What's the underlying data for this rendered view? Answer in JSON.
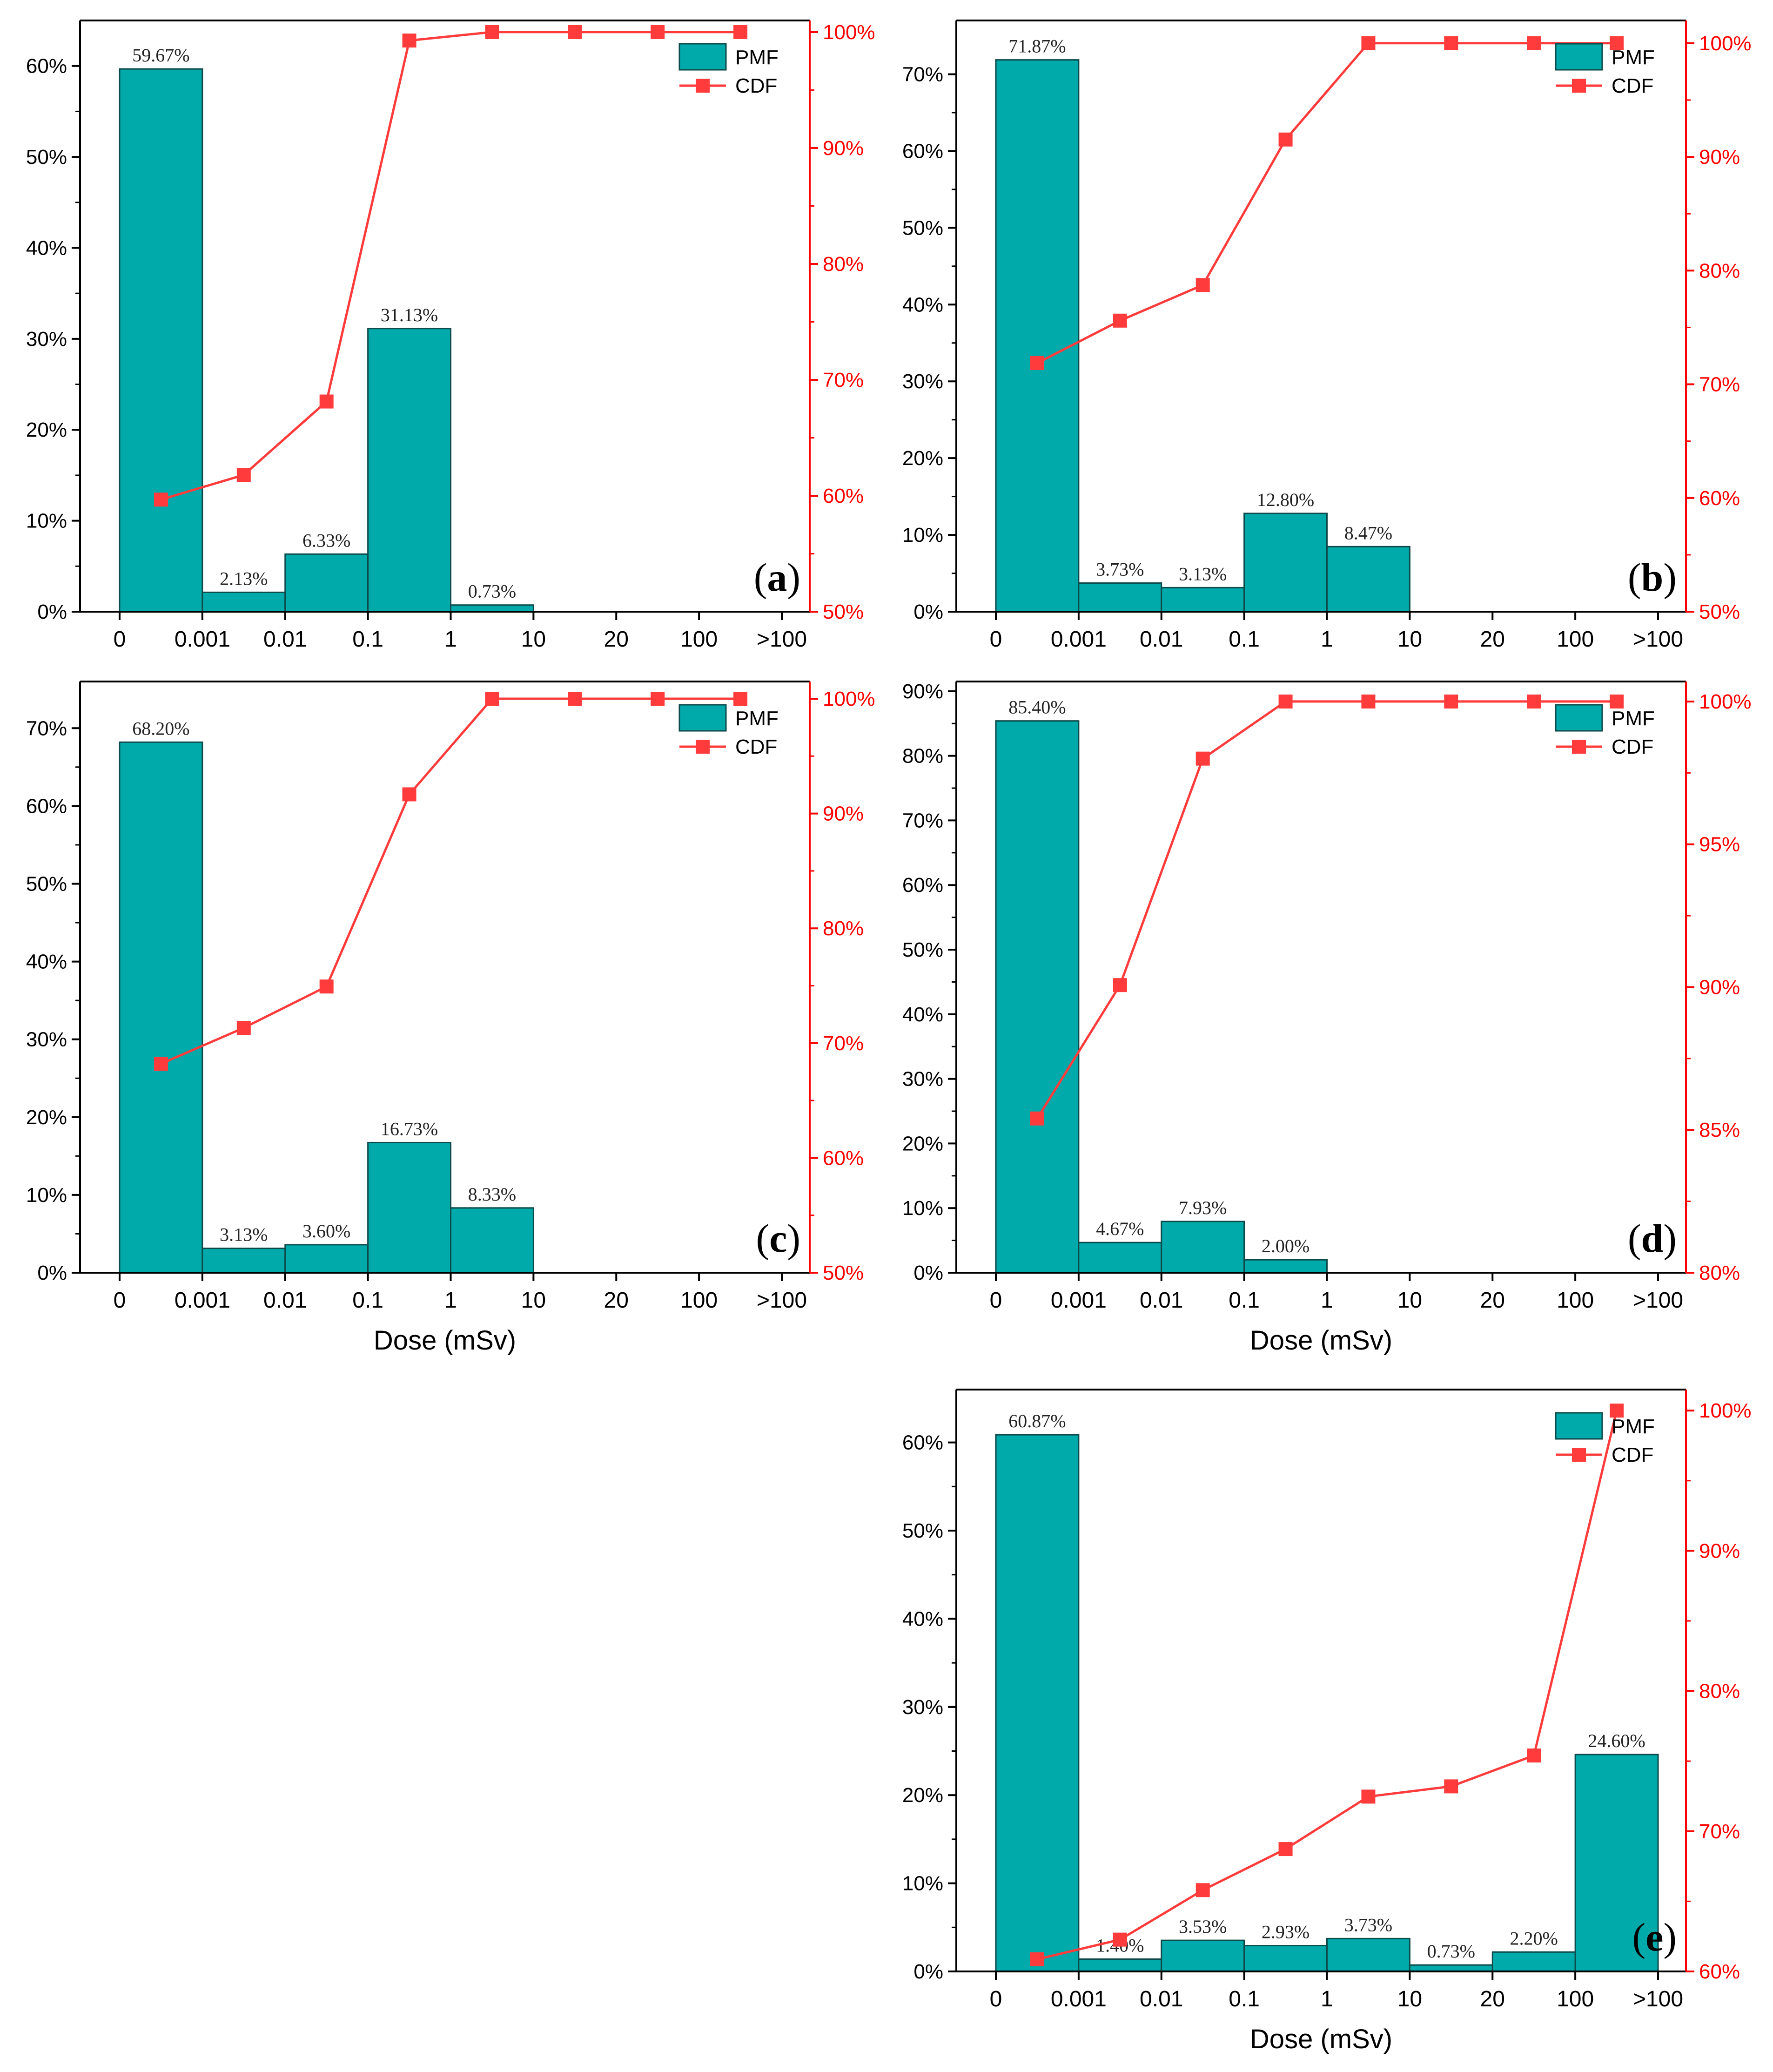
{
  "figure": {
    "x_tick_labels": [
      "0",
      "0.001",
      "0.01",
      "0.1",
      "1",
      "10",
      "20",
      "100",
      ">100"
    ],
    "xlabel": "Dose (mSv)",
    "legend": {
      "pmf": "PMF",
      "cdf": "CDF"
    },
    "colors": {
      "bar": "#00aaab",
      "bar_edge": "#0e4a4a",
      "cdf": "#ff3b3b",
      "cdf_axis": "#ff0000",
      "axis": "#000000"
    }
  },
  "chart_data": [
    {
      "type": "bar",
      "panel_label": "a",
      "categories": [
        "0–0.001",
        "0.001–0.01",
        "0.01–0.1",
        "0.1–1",
        "1–10",
        "10–20",
        "20–100",
        ">100"
      ],
      "series": [
        {
          "name": "PMF",
          "axis": "left",
          "unit": "%",
          "values": [
            59.67,
            2.13,
            6.33,
            31.13,
            0.73,
            0,
            0,
            0
          ],
          "value_labels": [
            "59.67%",
            "2.13%",
            "6.33%",
            "31.13%",
            "0.73%",
            "",
            "",
            ""
          ]
        },
        {
          "name": "CDF",
          "type": "line",
          "axis": "right",
          "unit": "%",
          "values": [
            59.67,
            61.8,
            68.13,
            99.27,
            100,
            100,
            100,
            100
          ]
        }
      ],
      "ylim": [
        0,
        65
      ],
      "yticks": [
        0,
        10,
        20,
        30,
        40,
        50,
        60
      ],
      "y_tick_labels": [
        "0%",
        "10%",
        "20%",
        "30%",
        "40%",
        "50%",
        "60%"
      ],
      "y2lim": [
        50,
        101
      ],
      "y2ticks": [
        50,
        60,
        70,
        80,
        90,
        100
      ],
      "y2_tick_labels": [
        "50%",
        "60%",
        "70%",
        "80%",
        "90%",
        "100%"
      ],
      "show_xlabel": false,
      "legend_position": "top-right"
    },
    {
      "type": "bar",
      "panel_label": "b",
      "categories": [
        "0–0.001",
        "0.001–0.01",
        "0.01–0.1",
        "0.1–1",
        "1–10",
        "10–20",
        "20–100",
        ">100"
      ],
      "series": [
        {
          "name": "PMF",
          "axis": "left",
          "unit": "%",
          "values": [
            71.87,
            3.73,
            3.13,
            12.8,
            8.47,
            0,
            0,
            0
          ],
          "value_labels": [
            "71.87%",
            "3.73%",
            "3.13%",
            "12.80%",
            "8.47%",
            "",
            "",
            ""
          ]
        },
        {
          "name": "CDF",
          "type": "line",
          "axis": "right",
          "unit": "%",
          "values": [
            71.87,
            75.6,
            78.73,
            91.53,
            100,
            100,
            100,
            100
          ]
        }
      ],
      "ylim": [
        0,
        77
      ],
      "yticks": [
        0,
        10,
        20,
        30,
        40,
        50,
        60,
        70
      ],
      "y_tick_labels": [
        "0%",
        "10%",
        "20%",
        "30%",
        "40%",
        "50%",
        "60%",
        "70%"
      ],
      "y2lim": [
        50,
        102
      ],
      "y2ticks": [
        50,
        60,
        70,
        80,
        90,
        100
      ],
      "y2_tick_labels": [
        "50%",
        "60%",
        "70%",
        "80%",
        "90%",
        "100%"
      ],
      "show_xlabel": false,
      "legend_position": "top-right"
    },
    {
      "type": "bar",
      "panel_label": "c",
      "categories": [
        "0–0.001",
        "0.001–0.01",
        "0.01–0.1",
        "0.1–1",
        "1–10",
        "10–20",
        "20–100",
        ">100"
      ],
      "series": [
        {
          "name": "PMF",
          "axis": "left",
          "unit": "%",
          "values": [
            68.2,
            3.13,
            3.6,
            16.73,
            8.33,
            0,
            0,
            0
          ],
          "value_labels": [
            "68.20%",
            "3.13%",
            "3.60%",
            "16.73%",
            "8.33%",
            "",
            "",
            ""
          ]
        },
        {
          "name": "CDF",
          "type": "line",
          "axis": "right",
          "unit": "%",
          "values": [
            68.2,
            71.33,
            74.93,
            91.67,
            100,
            100,
            100,
            100
          ]
        }
      ],
      "ylim": [
        0,
        76
      ],
      "yticks": [
        0,
        10,
        20,
        30,
        40,
        50,
        60,
        70
      ],
      "y_tick_labels": [
        "0%",
        "10%",
        "20%",
        "30%",
        "40%",
        "50%",
        "60%",
        "70%"
      ],
      "y2lim": [
        50,
        101.5
      ],
      "y2ticks": [
        50,
        60,
        70,
        80,
        90,
        100
      ],
      "y2_tick_labels": [
        "50%",
        "60%",
        "70%",
        "80%",
        "90%",
        "100%"
      ],
      "show_xlabel": true,
      "legend_position": "top-right"
    },
    {
      "type": "bar",
      "panel_label": "d",
      "categories": [
        "0–0.001",
        "0.001–0.01",
        "0.01–0.1",
        "0.1–1",
        "1–10",
        "10–20",
        "20–100",
        ">100"
      ],
      "series": [
        {
          "name": "PMF",
          "axis": "left",
          "unit": "%",
          "values": [
            85.4,
            4.67,
            7.93,
            2.0,
            0,
            0,
            0,
            0
          ],
          "value_labels": [
            "85.40%",
            "4.67%",
            "7.93%",
            "2.00%",
            "",
            "",
            "",
            ""
          ]
        },
        {
          "name": "CDF",
          "type": "line",
          "axis": "right",
          "unit": "%",
          "values": [
            85.4,
            90.07,
            98.0,
            100,
            100,
            100,
            100,
            100
          ]
        }
      ],
      "ylim": [
        0,
        91.5
      ],
      "yticks": [
        0,
        10,
        20,
        30,
        40,
        50,
        60,
        70,
        80,
        90
      ],
      "y_tick_labels": [
        "0%",
        "10%",
        "20%",
        "30%",
        "40%",
        "50%",
        "60%",
        "70%",
        "80%",
        "90%"
      ],
      "y2lim": [
        80,
        100.7
      ],
      "y2ticks": [
        80,
        85,
        90,
        95,
        100
      ],
      "y2_tick_labels": [
        "80%",
        "85%",
        "90%",
        "95%",
        "100%"
      ],
      "show_xlabel": true,
      "legend_position": "top-right"
    },
    {
      "type": "bar",
      "panel_label": "e",
      "categories": [
        "0–0.001",
        "0.001–0.01",
        "0.01–0.1",
        "0.1–1",
        "1–10",
        "10–20",
        "20–100",
        ">100"
      ],
      "series": [
        {
          "name": "PMF",
          "axis": "left",
          "unit": "%",
          "values": [
            60.87,
            1.4,
            3.53,
            2.93,
            3.73,
            0.73,
            2.2,
            24.6
          ],
          "value_labels": [
            "60.87%",
            "1.40%",
            "3.53%",
            "2.93%",
            "3.73%",
            "0.73%",
            "2.20%",
            "24.60%"
          ]
        },
        {
          "name": "CDF",
          "type": "line",
          "axis": "right",
          "unit": "%",
          "values": [
            60.87,
            62.27,
            65.8,
            68.73,
            72.47,
            73.2,
            75.4,
            100
          ]
        }
      ],
      "ylim": [
        0,
        66
      ],
      "yticks": [
        0,
        10,
        20,
        30,
        40,
        50,
        60
      ],
      "y_tick_labels": [
        "0%",
        "10%",
        "20%",
        "30%",
        "40%",
        "50%",
        "60%"
      ],
      "y2lim": [
        60,
        101.5
      ],
      "y2ticks": [
        60,
        70,
        80,
        90,
        100
      ],
      "y2_tick_labels": [
        "60%",
        "70%",
        "80%",
        "90%",
        "100%"
      ],
      "show_xlabel": true,
      "legend_position": "top-right"
    }
  ]
}
